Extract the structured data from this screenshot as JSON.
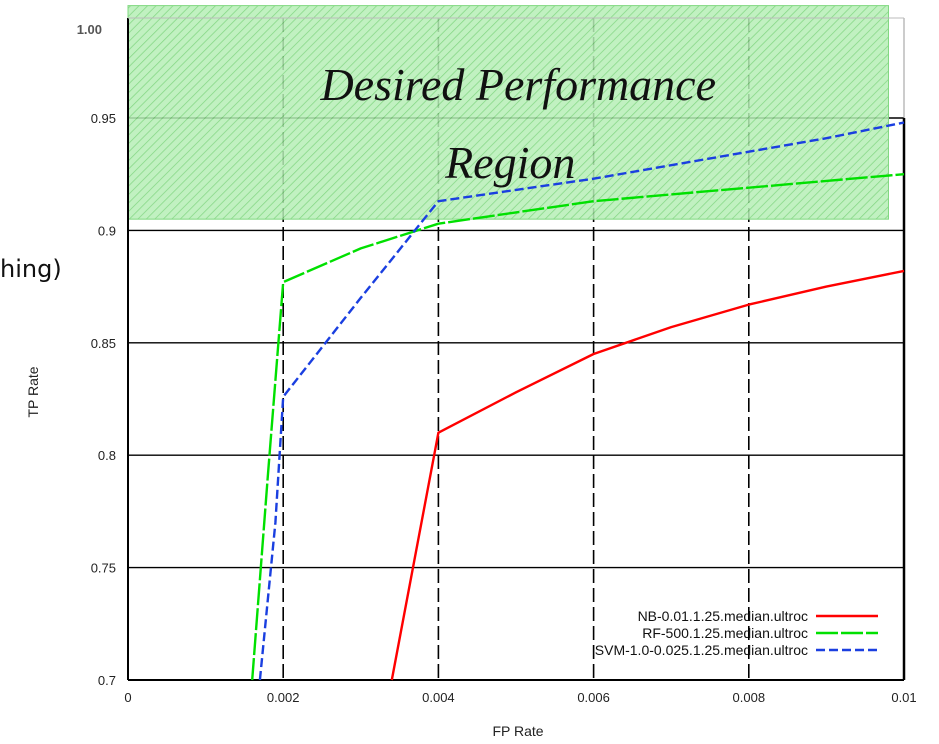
{
  "stray_text": "hing)",
  "chart_data": {
    "type": "line",
    "xlabel": "FP Rate",
    "ylabel": "TP Rate",
    "xlim": [
      0,
      0.01
    ],
    "ylim": [
      0.7,
      0.95
    ],
    "x_ticks": [
      0,
      0.002,
      0.004,
      0.006,
      0.008,
      0.01
    ],
    "x_tick_labels": [
      "0",
      "0.002",
      "0.004",
      "0.006",
      "0.008",
      "0.01"
    ],
    "y_ticks": [
      0.7,
      0.75,
      0.8,
      0.85,
      0.9,
      0.95
    ],
    "y_tick_labels": [
      "0.7",
      "0.75",
      "0.8",
      "0.85",
      "0.9",
      "0.95"
    ],
    "extra_y_tick_label": "1.00",
    "grid": true,
    "legend_position": "bottom-right",
    "series": [
      {
        "name": "NB-0.01.1.25.median.ultroc",
        "color": "#ff0000",
        "dash": "solid",
        "points": [
          [
            0.0034,
            0.7
          ],
          [
            0.004,
            0.81
          ],
          [
            0.005,
            0.828
          ],
          [
            0.006,
            0.845
          ],
          [
            0.007,
            0.857
          ],
          [
            0.008,
            0.867
          ],
          [
            0.009,
            0.875
          ],
          [
            0.01,
            0.882
          ]
        ]
      },
      {
        "name": "RF-500.1.25.median.ultroc",
        "color": "#00e000",
        "dash": "long-dash",
        "points": [
          [
            0.0016,
            0.7
          ],
          [
            0.0018,
            0.79
          ],
          [
            0.002,
            0.877
          ],
          [
            0.003,
            0.892
          ],
          [
            0.004,
            0.903
          ],
          [
            0.005,
            0.908
          ],
          [
            0.006,
            0.913
          ],
          [
            0.007,
            0.916
          ],
          [
            0.008,
            0.919
          ],
          [
            0.009,
            0.922
          ],
          [
            0.01,
            0.925
          ]
        ]
      },
      {
        "name": "SVM-1.0-0.025.1.25.median.ultroc",
        "color": "#1a3fe0",
        "dash": "short-dash",
        "points": [
          [
            0.0017,
            0.7
          ],
          [
            0.0019,
            0.77
          ],
          [
            0.002,
            0.826
          ],
          [
            0.003,
            0.87
          ],
          [
            0.004,
            0.913
          ],
          [
            0.005,
            0.918
          ],
          [
            0.006,
            0.923
          ],
          [
            0.007,
            0.929
          ],
          [
            0.008,
            0.935
          ],
          [
            0.009,
            0.941
          ],
          [
            0.01,
            0.948
          ]
        ]
      }
    ],
    "annotation": {
      "lines": [
        "Desired Performance",
        "Region"
      ],
      "region_x": [
        0,
        0.0098
      ],
      "region_y": [
        0.905,
        1.0
      ],
      "fill_color": "#9be89b",
      "hatch_color": "#6fcf6f"
    }
  }
}
